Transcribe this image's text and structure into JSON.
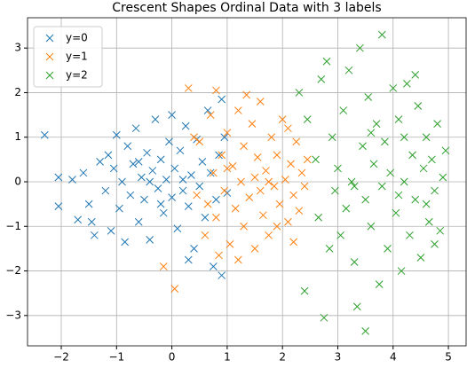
{
  "chart_data": {
    "type": "scatter",
    "title": "Crescent Shapes Ordinal Data with 3 labels",
    "xlim": [
      -2.61,
      5.32
    ],
    "ylim": [
      -3.68,
      3.68
    ],
    "xticks": [
      {
        "value": -2,
        "label": "−2"
      },
      {
        "value": -1,
        "label": "−1"
      },
      0,
      1,
      2,
      3,
      4,
      5
    ],
    "yticks": [
      {
        "value": -3,
        "label": "−3"
      },
      {
        "value": -2,
        "label": "−2"
      },
      {
        "value": -1,
        "label": "−1"
      },
      0,
      1,
      2,
      3
    ],
    "grid": true,
    "legend": "upper left",
    "marker": "x",
    "series": [
      {
        "name": "y=0",
        "color": "#1f77b4",
        "x": [
          -2.3,
          -2.05,
          -2.05,
          -1.8,
          -1.7,
          -1.6,
          -1.5,
          -1.45,
          -1.4,
          -1.3,
          -1.2,
          -1.15,
          -1.1,
          -1.05,
          -1.0,
          -0.95,
          -0.9,
          -0.85,
          -0.8,
          -0.75,
          -0.7,
          -0.65,
          -0.6,
          -0.55,
          -0.5,
          -0.45,
          -0.4,
          -0.35,
          -0.3,
          -0.25,
          -0.2,
          -0.15,
          -0.1,
          -0.05,
          0.0,
          0.0,
          0.05,
          0.1,
          0.15,
          0.2,
          0.25,
          0.3,
          0.35,
          0.4,
          0.45,
          0.5,
          0.55,
          0.6,
          0.65,
          0.7,
          0.75,
          0.8,
          0.85,
          0.9,
          0.95,
          1.0,
          -0.4,
          -0.6,
          0.2,
          -0.2,
          0.3,
          0.9
        ],
        "values": [
          1.05,
          0.1,
          -0.55,
          0.05,
          -0.85,
          0.2,
          -0.5,
          -0.9,
          -1.2,
          0.45,
          -0.2,
          0.6,
          -1.1,
          0.3,
          1.05,
          -0.6,
          0.0,
          -1.35,
          0.8,
          -0.3,
          0.4,
          1.2,
          -0.9,
          0.1,
          -0.4,
          0.65,
          -1.3,
          0.25,
          1.4,
          -0.15,
          0.5,
          -0.7,
          0.05,
          0.9,
          -0.35,
          1.5,
          0.3,
          -1.05,
          0.7,
          -0.2,
          1.25,
          -0.55,
          0.15,
          -1.5,
          0.95,
          -0.1,
          0.45,
          -0.8,
          1.6,
          0.2,
          -1.9,
          -0.4,
          0.6,
          -2.1,
          1.0,
          -0.25,
          0.0,
          0.45,
          0.05,
          -0.5,
          -1.75,
          1.85
        ]
      },
      {
        "name": "y=1",
        "color": "#ff7f0e",
        "x": [
          -0.15,
          0.05,
          0.3,
          0.45,
          0.5,
          0.6,
          0.7,
          0.75,
          0.8,
          0.8,
          0.85,
          0.9,
          0.95,
          1.0,
          1.05,
          1.1,
          1.15,
          1.2,
          1.25,
          1.3,
          1.3,
          1.4,
          1.45,
          1.5,
          1.5,
          1.55,
          1.6,
          1.65,
          1.7,
          1.75,
          1.8,
          1.85,
          1.9,
          1.95,
          2.0,
          2.05,
          2.1,
          2.15,
          2.2,
          2.25,
          2.3,
          2.35,
          2.4,
          2.45,
          1.2,
          0.65,
          1.0,
          1.35,
          1.75,
          2.1,
          1.6,
          1.9,
          0.4,
          2.2
        ],
        "values": [
          -1.9,
          -2.4,
          2.1,
          -0.3,
          0.9,
          -1.2,
          1.5,
          0.2,
          -0.8,
          2.05,
          -1.65,
          0.6,
          -0.2,
          1.1,
          -1.4,
          0.35,
          -0.6,
          1.6,
          0.0,
          -1.0,
          0.8,
          -0.35,
          1.3,
          0.1,
          -1.5,
          0.55,
          1.8,
          -0.75,
          0.25,
          -1.2,
          1.0,
          -0.1,
          0.6,
          -0.5,
          1.4,
          0.05,
          -0.9,
          0.4,
          -0.3,
          0.9,
          -0.65,
          0.2,
          -0.1,
          0.5,
          -1.75,
          -0.5,
          0.3,
          1.95,
          0.0,
          1.2,
          -0.2,
          -1.0,
          1.0,
          -1.35
        ]
      },
      {
        "name": "y=2",
        "color": "#2ca02c",
        "x": [
          2.3,
          2.4,
          2.45,
          2.6,
          2.65,
          2.7,
          2.75,
          2.8,
          2.85,
          2.9,
          2.95,
          3.0,
          3.05,
          3.1,
          3.15,
          3.2,
          3.25,
          3.3,
          3.35,
          3.4,
          3.45,
          3.5,
          3.5,
          3.55,
          3.6,
          3.65,
          3.7,
          3.75,
          3.8,
          3.8,
          3.85,
          3.9,
          3.95,
          4.0,
          4.05,
          4.1,
          4.15,
          4.2,
          4.25,
          4.3,
          4.35,
          4.4,
          4.45,
          4.5,
          4.55,
          4.6,
          4.65,
          4.7,
          4.75,
          4.8,
          4.85,
          4.9,
          4.95,
          4.4,
          4.1,
          3.3,
          4.6,
          4.2,
          4.75,
          3.6
        ],
        "values": [
          2.0,
          -2.45,
          1.4,
          0.5,
          -0.8,
          2.3,
          -3.05,
          2.7,
          -1.5,
          1.0,
          -0.2,
          0.3,
          -1.2,
          1.6,
          -0.6,
          2.5,
          0.0,
          -1.8,
          -2.8,
          3.0,
          0.8,
          -3.35,
          -0.4,
          1.9,
          -1.0,
          0.4,
          1.3,
          -2.3,
          3.3,
          -0.1,
          0.9,
          -1.5,
          0.2,
          2.1,
          -0.7,
          1.4,
          -2.0,
          0.0,
          2.2,
          -1.2,
          0.6,
          -0.4,
          1.7,
          -1.7,
          0.3,
          1.0,
          -0.9,
          0.5,
          -0.2,
          1.3,
          -1.1,
          0.1,
          0.7,
          2.4,
          -0.3,
          -0.1,
          -0.5,
          1.0,
          -1.4,
          1.1
        ]
      }
    ]
  }
}
